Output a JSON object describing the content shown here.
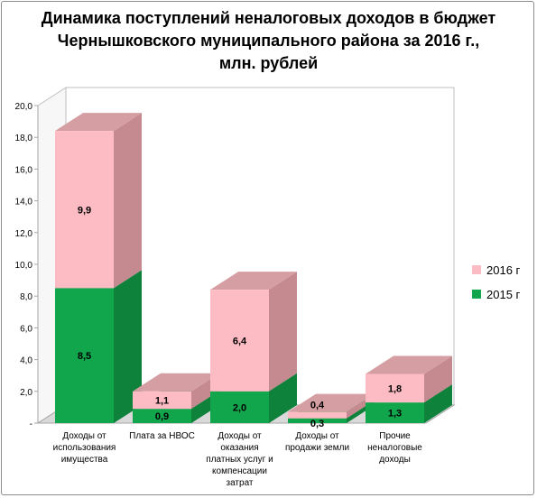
{
  "chart_data": {
    "type": "bar",
    "stacked": true,
    "title_lines": [
      "Динамика поступлений неналоговых доходов в бюджет",
      "Чернышковского муниципального района за 2016 г.,",
      "млн. рублей"
    ],
    "categories": [
      [
        "Доходы от",
        "использования",
        "имущества"
      ],
      [
        "Плата за НВОС"
      ],
      [
        "Доходы от",
        "оказания",
        "платных услуг и",
        "компенсации",
        "затрат"
      ],
      [
        "Доходы от",
        "продажи земли"
      ],
      [
        "Прочие",
        "неналоговые",
        "доходы"
      ]
    ],
    "series": [
      {
        "name": "2015 г",
        "values": [
          8.5,
          0.9,
          2.0,
          0.3,
          1.3
        ],
        "labels": [
          "8,5",
          "0,9",
          "2,0",
          "0,3",
          "1,3"
        ],
        "color": "#12A64C"
      },
      {
        "name": "2016 г",
        "values": [
          9.9,
          1.1,
          6.4,
          0.4,
          1.8
        ],
        "labels": [
          "9,9",
          "1,1",
          "6,4",
          "0,4",
          "1,8"
        ],
        "color": "#FDBCC4"
      }
    ],
    "ylim": [
      0,
      20
    ],
    "yticks": [
      "-",
      "2,0",
      "4,0",
      "6,0",
      "8,0",
      "10,0",
      "12,0",
      "14,0",
      "16,0",
      "18,0",
      "20,0"
    ],
    "legend_position": "right",
    "grid": false,
    "three_d": true
  }
}
